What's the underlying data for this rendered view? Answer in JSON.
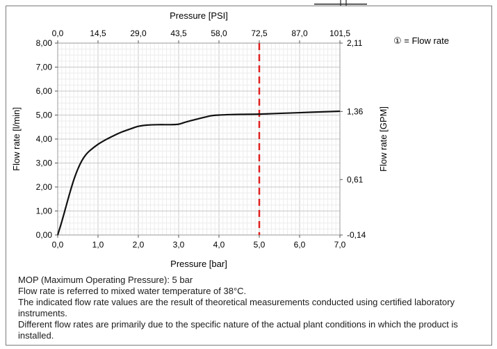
{
  "chart_data": {
    "type": "line",
    "title": "",
    "xlabel": "Pressure [bar]",
    "ylabel": "Flow rate [l/min]",
    "top_axis_label": "Pressure [PSI]",
    "right_axis_label": "Flow rate [GPM]",
    "xlim": [
      0,
      7
    ],
    "ylim": [
      0,
      8
    ],
    "x_ticks": [
      "0,0",
      "1,0",
      "2,0",
      "3,0",
      "4,0",
      "5,0",
      "6,0",
      "7,0"
    ],
    "y_ticks": [
      "0,00",
      "1,00",
      "2,00",
      "3,00",
      "4,00",
      "5,00",
      "6,00",
      "7,00",
      "8,00"
    ],
    "top_ticks": [
      "0,0",
      "14,5",
      "29,0",
      "43,5",
      "58,0",
      "72,5",
      "87,0",
      "101,5"
    ],
    "right_ticks": [
      {
        "label": "2,11",
        "y": 8.0
      },
      {
        "label": "1,36",
        "y": 5.15
      },
      {
        "label": "0,61",
        "y": 2.31
      },
      {
        "label": "-0,14",
        "y": 0.0
      }
    ],
    "grid": true,
    "legend_text": "① = Flow rate",
    "mop_line_x": 5.0,
    "mop_line_color": "#e02020",
    "curve_color": "#111111",
    "series": [
      {
        "x": [
          0,
          0.1,
          0.2,
          0.3,
          0.4,
          0.5,
          0.6,
          0.7,
          0.8,
          1.0,
          1.2,
          1.4,
          1.6,
          1.8,
          2.0,
          2.2,
          2.5,
          2.8,
          3.0,
          3.2,
          3.5,
          3.8,
          4.0,
          4.3,
          4.6,
          5.0,
          5.5,
          6.0,
          6.5,
          7.0
        ],
        "y": [
          0,
          0.55,
          1.15,
          1.75,
          2.3,
          2.75,
          3.1,
          3.35,
          3.52,
          3.78,
          3.98,
          4.15,
          4.3,
          4.42,
          4.53,
          4.58,
          4.6,
          4.6,
          4.62,
          4.72,
          4.85,
          4.97,
          5.0,
          5.02,
          5.03,
          5.04,
          5.07,
          5.1,
          5.13,
          5.16
        ]
      }
    ]
  },
  "notes": [
    "MOP (Maximum Operating Pressure): 5 bar",
    "Flow rate is referred to mixed water temperature of 38°C.",
    "The indicated flow rate values are the result of theoretical measurements conducted using certified laboratory instruments.",
    "Different flow rates are primarily due to the specific nature of the actual plant conditions in which the product is installed."
  ]
}
